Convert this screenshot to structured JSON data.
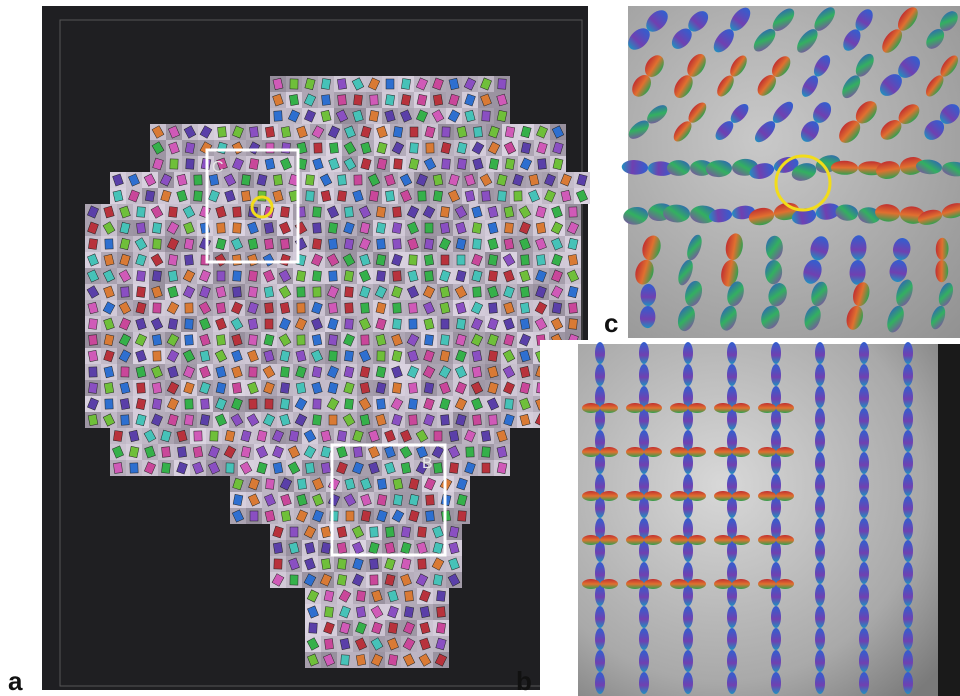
{
  "panels": [
    {
      "label": "a"
    },
    {
      "label": "b"
    },
    {
      "label": "c"
    }
  ],
  "insets": [
    {
      "label": "C"
    },
    {
      "label": "B"
    }
  ]
}
